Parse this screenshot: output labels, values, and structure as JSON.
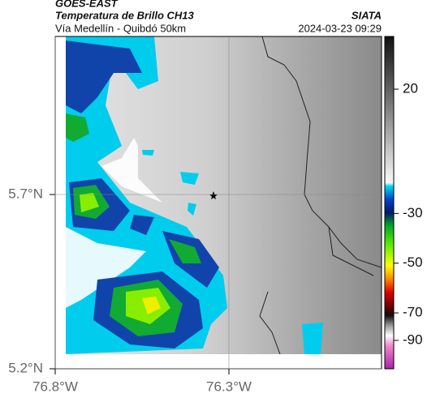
{
  "header": {
    "satellite": "GOES-EAST",
    "product": "Temperatura de Brillo CH13",
    "source": "SIATA",
    "location": "Vía Medellín - Quibdó 50km",
    "datetime": "2024-03-23 09:29"
  },
  "map": {
    "yticks": [
      {
        "value": 5.7,
        "label": "5.7°N"
      },
      {
        "value": 5.2,
        "label": "5.2°N"
      }
    ],
    "xticks": [
      {
        "value": -76.8,
        "label": "76.8°W"
      },
      {
        "value": -76.3,
        "label": "76.3°W"
      }
    ]
  },
  "colorbar": {
    "ticks": [
      20,
      -30,
      -50,
      -70,
      -90
    ]
  }
}
